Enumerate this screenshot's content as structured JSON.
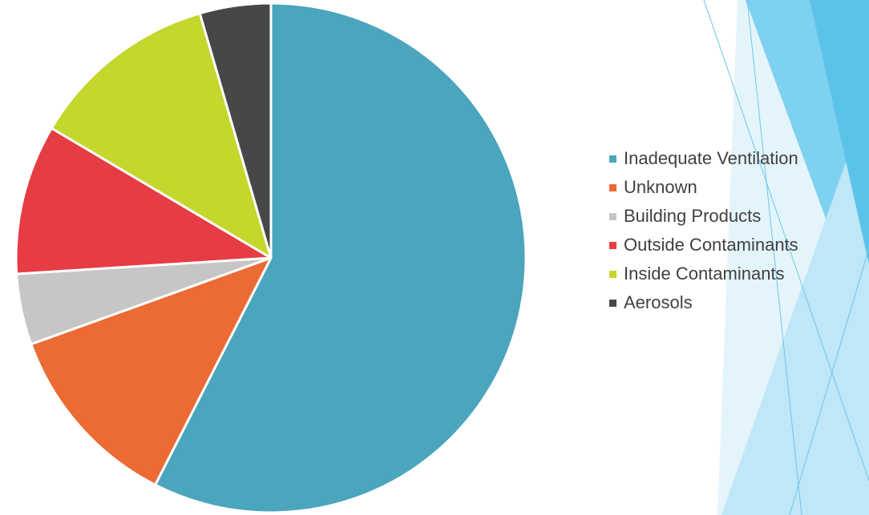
{
  "chart_data": {
    "type": "pie",
    "start_angle_deg": 0,
    "direction": "clockwise",
    "legend_position": "right",
    "categories": [
      "Inadequate Ventilation",
      "Unknown",
      "Building Products",
      "Outside Contaminants",
      "Inside Contaminants",
      "Aerosols"
    ],
    "values": [
      57.5,
      12.0,
      4.5,
      9.5,
      12.0,
      4.5
    ],
    "value_unit": "percent",
    "colors": [
      "#4aa5bd",
      "#ec6a34",
      "#c6c6c6",
      "#e63c44",
      "#c5d62c",
      "#454749"
    ]
  }
}
